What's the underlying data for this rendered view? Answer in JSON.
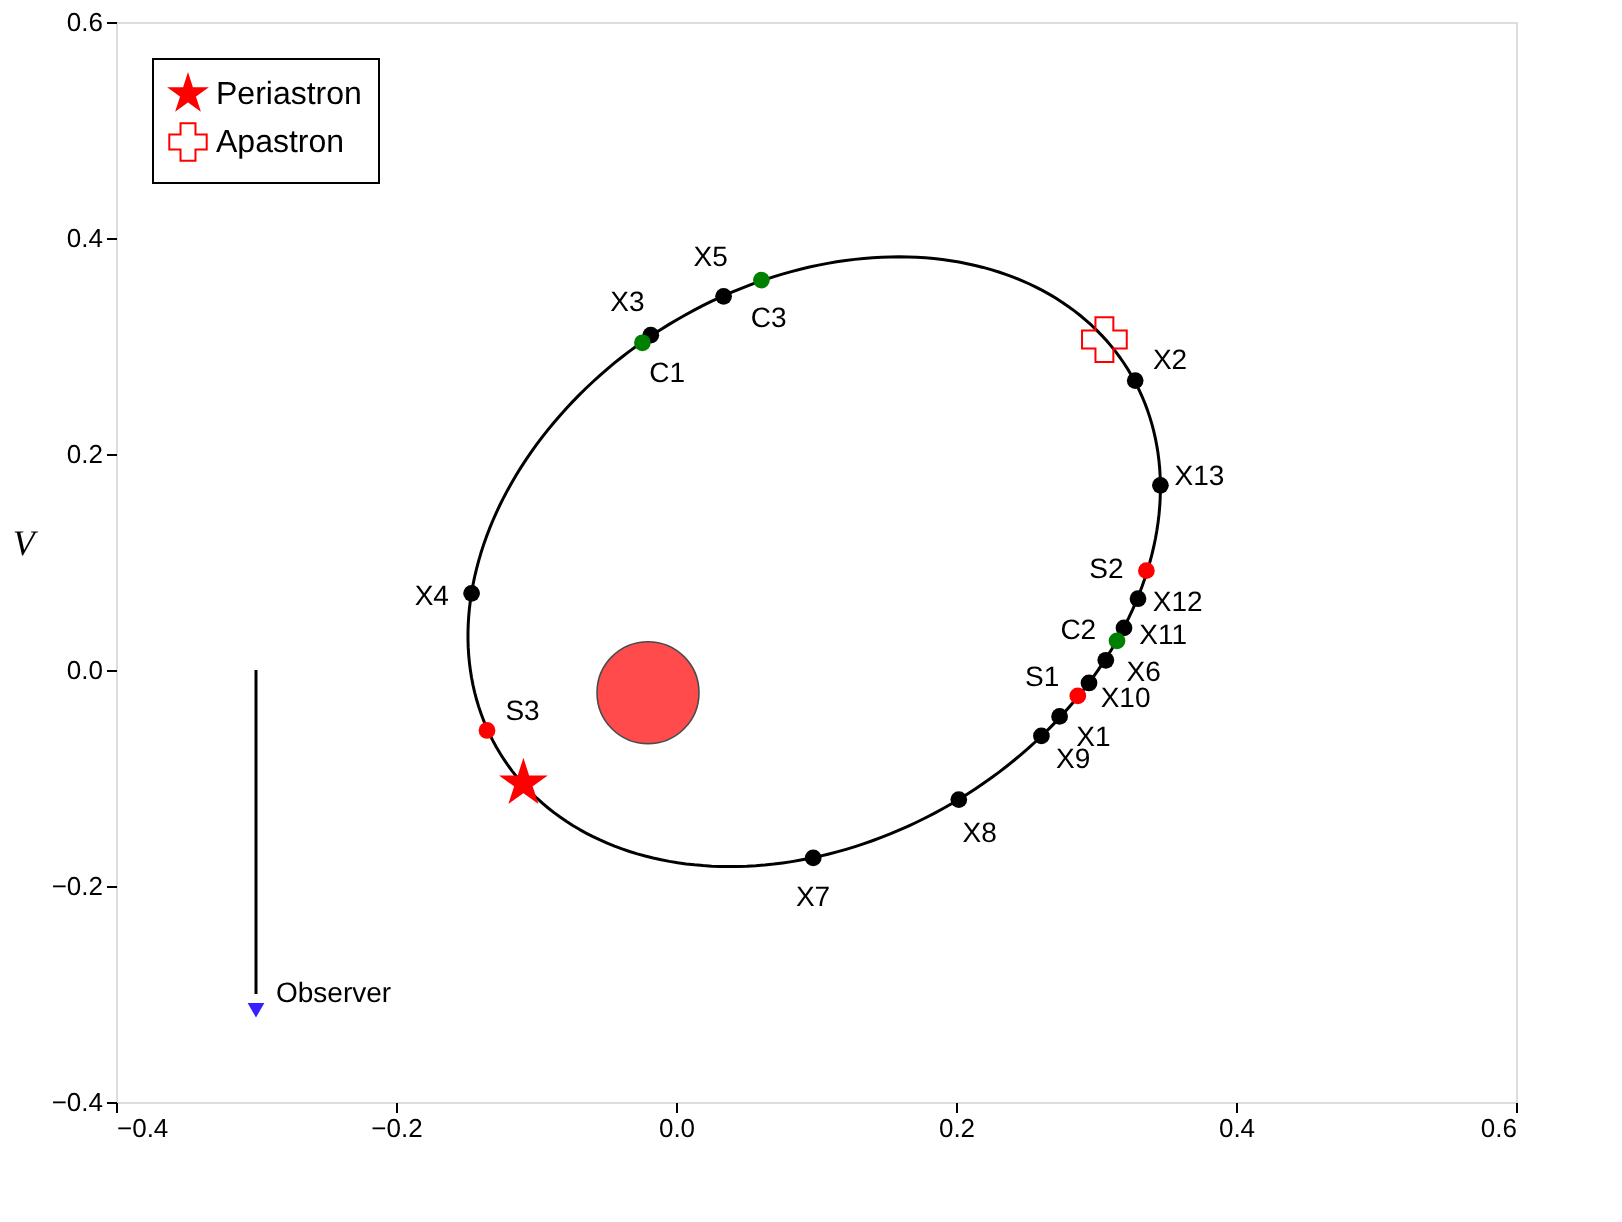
{
  "chart_data": {
    "type": "scatter",
    "ylabel": "V",
    "xlim": [
      -0.4,
      0.6
    ],
    "ylim": [
      -0.4,
      0.6
    ],
    "xticks": [
      {
        "value": -0.4,
        "label": "−0.4"
      },
      {
        "value": -0.2,
        "label": "−0.2"
      },
      {
        "value": 0.0,
        "label": "0.0"
      },
      {
        "value": 0.2,
        "label": "0.2"
      },
      {
        "value": 0.4,
        "label": "0.4"
      },
      {
        "value": 0.6,
        "label": "0.6"
      }
    ],
    "yticks": [
      {
        "value": -0.4,
        "label": "−0.4"
      },
      {
        "value": -0.2,
        "label": "−0.2"
      },
      {
        "value": 0.0,
        "label": "0.0"
      },
      {
        "value": 0.2,
        "label": "0.2"
      },
      {
        "value": 0.4,
        "label": "0.4"
      },
      {
        "value": 0.6,
        "label": "0.6"
      }
    ],
    "grid": false,
    "legend": "top left",
    "annotations": [
      {
        "text": "Observer",
        "x": -0.3,
        "y": -0.3
      }
    ],
    "series": [
      {
        "type": "line",
        "color": "#000000",
        "marker": "none",
        "line_style": "solid",
        "x": [
          -0.3,
          -0.3
        ],
        "values": [
          0.0,
          -0.3
        ]
      },
      {
        "type": "scatter",
        "color": "#3a1fff",
        "marker": "triangle",
        "x": [
          -0.3
        ],
        "values": [
          -0.315
        ]
      },
      {
        "type": "scatter",
        "color": "#000000",
        "marker": "circle",
        "x": [
          -0.018,
          0.034,
          0.328,
          0.346,
          0.33,
          0.32,
          0.307,
          0.295,
          0.274,
          0.261,
          0.202,
          0.098,
          -0.146
        ],
        "values": [
          0.31,
          0.346,
          0.268,
          0.171,
          0.066,
          0.039,
          0.009,
          -0.012,
          -0.043,
          -0.061,
          -0.12,
          -0.174,
          0.071
        ],
        "value_labels": [
          "X3",
          "X5",
          "X2",
          "X13",
          "X12",
          "X11",
          "X6",
          "X10",
          "X1",
          "X9",
          "X8",
          "X7",
          "X4"
        ]
      },
      {
        "type": "scatter",
        "color": "#008000",
        "marker": "circle",
        "x": [
          -0.024,
          0.061,
          0.315
        ],
        "values": [
          0.303,
          0.361,
          0.027
        ],
        "value_labels": [
          "C1",
          "C3",
          "C2"
        ]
      },
      {
        "type": "scatter",
        "color": "#ff0000",
        "marker": "circle",
        "x": [
          0.336,
          0.287,
          -0.135
        ],
        "values": [
          0.092,
          -0.024,
          -0.056
        ],
        "value_labels": [
          "S2",
          "S1",
          "S3"
        ]
      },
      {
        "type": "bubble",
        "color": "#ff0000",
        "marker": "circle",
        "x": [
          -0.02
        ],
        "values": [
          -0.021
        ],
        "sizes": [
          1
        ]
      },
      {
        "type": "scatter",
        "name": "Periastron",
        "color": "#ff0000",
        "marker": "star",
        "x": [
          -0.109
        ],
        "values": [
          -0.105
        ]
      },
      {
        "type": "scatter",
        "name": "Apastron",
        "color": "#ff0000",
        "marker": "cross",
        "x": [
          0.306
        ],
        "values": [
          0.306
        ]
      }
    ]
  }
}
